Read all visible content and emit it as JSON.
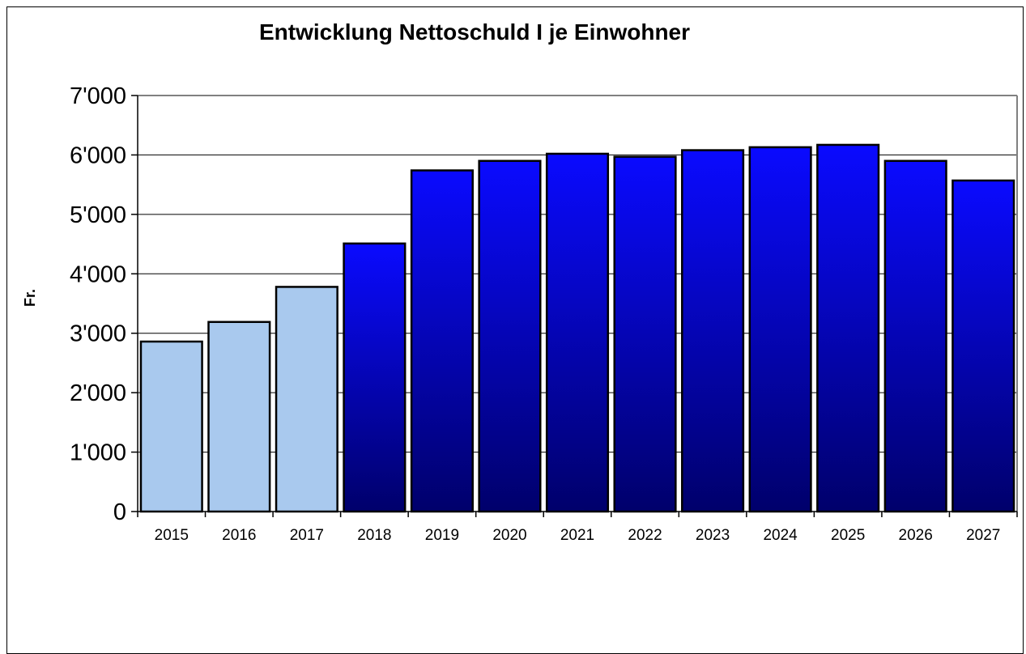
{
  "chart_data": {
    "type": "bar",
    "title": "Entwicklung Nettoschuld I je Einwohner",
    "xlabel": "",
    "ylabel": "Fr.",
    "ylim": [
      0,
      7000
    ],
    "yticks": [
      0,
      1000,
      2000,
      3000,
      4000,
      5000,
      6000,
      7000
    ],
    "ytick_labels": [
      "0",
      "1'000",
      "2'000",
      "3'000",
      "4'000",
      "5'000",
      "6'000",
      "7'000"
    ],
    "grid": true,
    "categories": [
      "2015",
      "2016",
      "2017",
      "2018",
      "2019",
      "2020",
      "2021",
      "2022",
      "2023",
      "2024",
      "2025",
      "2026",
      "2027"
    ],
    "values": [
      2860,
      3190,
      3780,
      4510,
      5740,
      5900,
      6020,
      5970,
      6080,
      6130,
      6170,
      5900,
      5570
    ],
    "colors": {
      "past_fill": "#a9c9ee",
      "forecast_top": "#0a0aff",
      "forecast_bottom": "#00006b",
      "bar_stroke": "#000000",
      "grid": "#000000"
    },
    "past_count": 3
  }
}
